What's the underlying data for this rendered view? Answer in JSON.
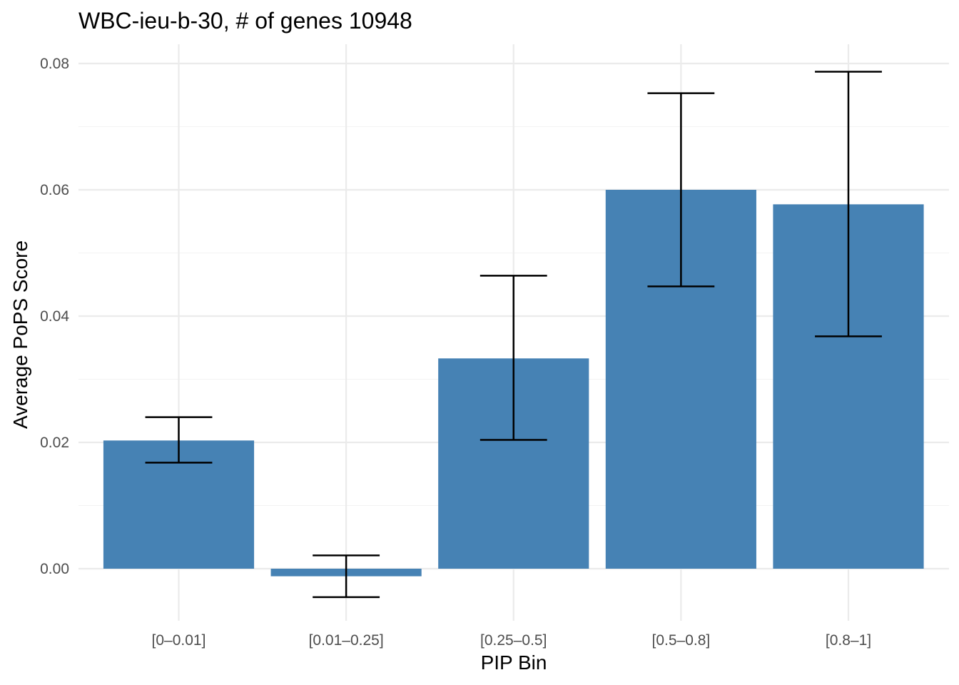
{
  "chart_data": {
    "type": "bar",
    "title": "WBC-ieu-b-30, # of genes 10948",
    "xlabel": "PIP Bin",
    "ylabel": "Average PoPS Score",
    "categories": [
      "[0–0.01]",
      "[0.01–0.25]",
      "[0.25–0.5]",
      "[0.5–0.8]",
      "[0.8–1]"
    ],
    "values": [
      0.0203,
      -0.0012,
      0.0333,
      0.06,
      0.0577
    ],
    "error_low": [
      0.0168,
      -0.0045,
      0.0204,
      0.0447,
      0.0368
    ],
    "error_high": [
      0.024,
      0.0021,
      0.0464,
      0.0753,
      0.0787
    ],
    "ylim": [
      -0.008,
      0.083
    ],
    "yticks": [
      0.0,
      0.02,
      0.04,
      0.06,
      0.08
    ],
    "ytick_labels": [
      "0.00",
      "0.02",
      "0.04",
      "0.06",
      "0.08"
    ],
    "bar_color": "#4682b4",
    "error_color": "#000000",
    "grid": true,
    "legend": "none"
  }
}
